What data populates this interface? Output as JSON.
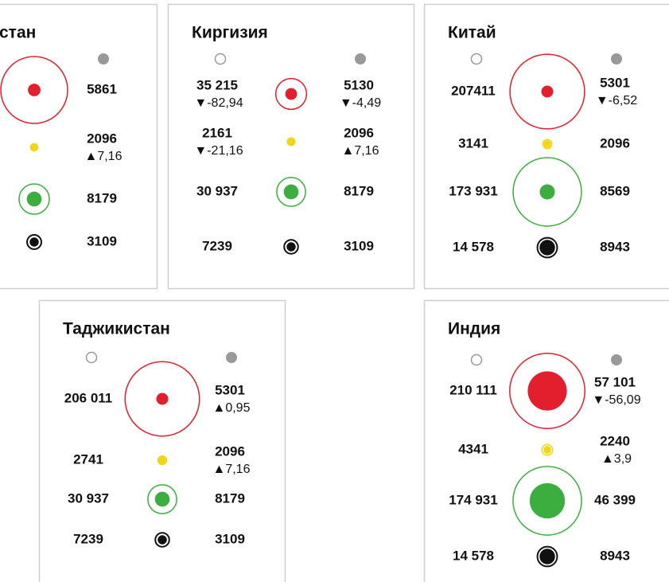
{
  "row_colors": [
    "#e31e2d",
    "#f2d516",
    "#3cae3f",
    "#111111"
  ],
  "cards": [
    {
      "title": "стан",
      "rows": [
        {
          "ring": 166000,
          "right": 5861
        },
        {
          "ring": 2000,
          "right": 2096,
          "right_change": "▲7,16"
        },
        {
          "ring": 34000,
          "right": 8179
        },
        {
          "ring": 7600,
          "right": 3109
        }
      ]
    },
    {
      "title": "Киргизия",
      "rows": [
        {
          "left": 35215,
          "left_label": "35 215",
          "left_change": "▼-82,94",
          "right": 5130,
          "right_change": "▼-4,49"
        },
        {
          "left": 2161,
          "left_change": "▼-21,16",
          "right": 2096,
          "right_change": "▲7,16"
        },
        {
          "left": 30937,
          "left_label": "30 937",
          "right": 8179
        },
        {
          "left": 7239,
          "right": 3109
        }
      ]
    },
    {
      "title": "Китай",
      "rows": [
        {
          "left": 207411,
          "right": 5301,
          "right_change": "▼-6,52"
        },
        {
          "left": 3141,
          "right": 2096
        },
        {
          "left": 173931,
          "left_label": "173 931",
          "right": 8569
        },
        {
          "left": 14578,
          "left_label": "14 578",
          "right": 8943
        }
      ]
    },
    {
      "title": "Таджикистан",
      "rows": [
        {
          "left": 206011,
          "left_label": "206 011",
          "right": 5301,
          "right_change": "▲0,95"
        },
        {
          "left": 2741,
          "right": 2096,
          "right_change": "▲7,16"
        },
        {
          "left": 30937,
          "left_label": "30 937",
          "right": 8179
        },
        {
          "left": 7239,
          "right": 3109
        }
      ]
    },
    {
      "title": "Индия",
      "rows": [
        {
          "left": 210111,
          "left_label": "210 111",
          "right": 57101,
          "right_label": "57 101",
          "right_change": "▼-56,09"
        },
        {
          "left": 4341,
          "right": 2240,
          "right_change": "▲3,9"
        },
        {
          "left": 174931,
          "left_label": "174 931",
          "right": 46399,
          "right_label": "46 399"
        },
        {
          "left": 14578,
          "left_label": "14 578",
          "right": 8943
        }
      ]
    }
  ]
}
